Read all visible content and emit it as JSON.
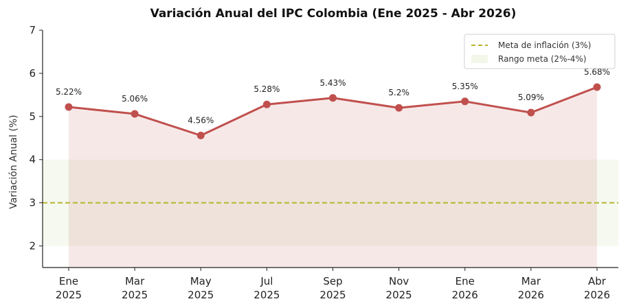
{
  "chart_data": {
    "type": "line",
    "title": "Variación Anual del IPC Colombia (Ene 2025 - Abr 2026)",
    "xlabel": "",
    "ylabel": "Variación Anual (%)",
    "categories": [
      "Ene\n2025",
      "Mar\n2025",
      "May\n2025",
      "Jul\n2025",
      "Sep\n2025",
      "Nov\n2025",
      "Ene\n2026",
      "Mar\n2026",
      "Abr\n2026"
    ],
    "series": [
      {
        "values": [
          5.22,
          5.06,
          4.56,
          5.28,
          5.43,
          5.2,
          5.35,
          5.09,
          5.68
        ],
        "labels": [
          "5.22%",
          "5.06%",
          "4.56%",
          "5.28%",
          "5.43%",
          "5.2%",
          "5.35%",
          "5.09%",
          "5.68%"
        ],
        "color": "#c0504d"
      }
    ],
    "fill_color": "#c0504d",
    "target_line": {
      "value": 3,
      "label": "Meta de inflación (3%)",
      "color": "#b5b52a"
    },
    "target_band": {
      "range": [
        2,
        4
      ],
      "label": "Rango meta (2%-4%)",
      "color": "#e9f2dc"
    },
    "ylim": [
      1.5,
      7
    ],
    "yticks": [
      2,
      3,
      4,
      5,
      6,
      7
    ],
    "grid": false,
    "legend_position": "top-right"
  }
}
